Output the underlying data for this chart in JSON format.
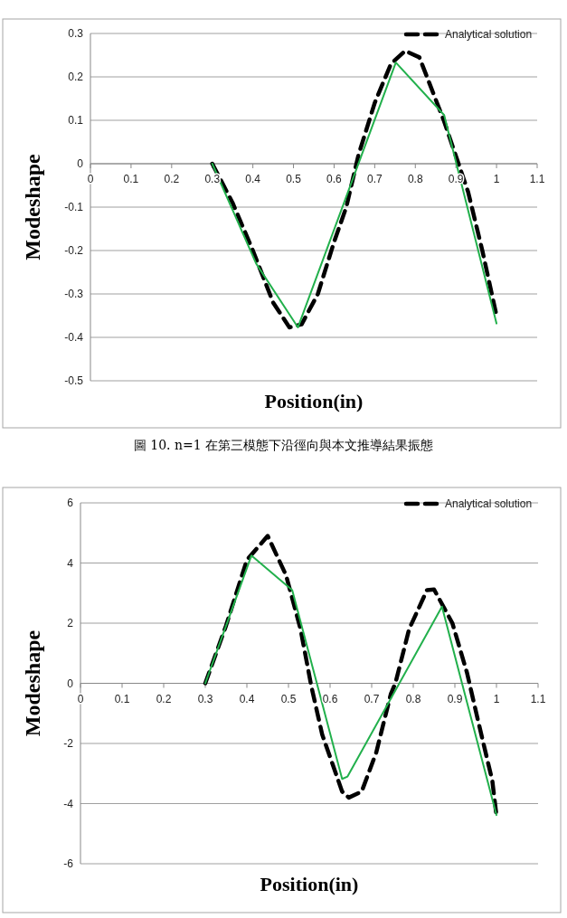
{
  "chart_data": [
    {
      "type": "line",
      "xlabel": "Position(in)",
      "ylabel": "Modeshape",
      "xlim": [
        0,
        1.1
      ],
      "ylim": [
        -0.5,
        0.3
      ],
      "xticks": [
        0,
        0.1,
        0.2,
        0.3,
        0.4,
        0.5,
        0.6,
        0.7,
        0.8,
        0.9,
        1,
        1.1
      ],
      "yticks": [
        -0.5,
        -0.4,
        -0.3,
        -0.2,
        -0.1,
        0,
        0.1,
        0.2,
        0.3
      ],
      "grid": "y",
      "legend": "top right",
      "marker": "none",
      "series": [
        {
          "name": "Analytical solution",
          "color": "#000000",
          "line_style": "dashed",
          "x": [
            0.3,
            0.35,
            0.4,
            0.45,
            0.49,
            0.52,
            0.56,
            0.6,
            0.63,
            0.66,
            0.7,
            0.74,
            0.775,
            0.81,
            0.87,
            0.93,
            0.965,
            1.0
          ],
          "values": [
            0,
            -0.09,
            -0.2,
            -0.32,
            -0.377,
            -0.37,
            -0.3,
            -0.18,
            -0.1,
            0.02,
            0.14,
            0.23,
            0.26,
            0.245,
            0.1,
            -0.065,
            -0.2,
            -0.35
          ]
        },
        {
          "color": "#22b04c",
          "line_style": "solid",
          "x": [
            0.3,
            0.408,
            0.511,
            0.752,
            0.871,
            1.0
          ],
          "values": [
            0,
            -0.23,
            -0.377,
            0.233,
            0.112,
            -0.368
          ]
        }
      ],
      "annotations": [
        "圖 10.  n=1 在第三模態下沿徑向與本文推導結果振態"
      ]
    },
    {
      "type": "line",
      "xlabel": "Position(in)",
      "ylabel": "Modeshape",
      "xlim": [
        0,
        1.1
      ],
      "ylim": [
        -6,
        6
      ],
      "xticks": [
        0,
        0.1,
        0.2,
        0.3,
        0.4,
        0.5,
        0.6,
        0.7,
        0.8,
        0.9,
        1,
        1.1
      ],
      "yticks": [
        -6,
        -4,
        -2,
        0,
        2,
        4,
        6
      ],
      "grid": "y",
      "legend": "top right",
      "marker": "none",
      "series": [
        {
          "name": "Analytical solution",
          "color": "#000000",
          "line_style": "dashed",
          "x": [
            0.3,
            0.35,
            0.4,
            0.45,
            0.494,
            0.529,
            0.555,
            0.581,
            0.629,
            0.645,
            0.676,
            0.711,
            0.746,
            0.757,
            0.79,
            0.833,
            0.85,
            0.894,
            0.929,
            0.955,
            0.99,
            1.0
          ],
          "values": [
            0,
            1.92,
            4.1,
            4.9,
            3.6,
            1.8,
            -0.1,
            -1.7,
            -3.6,
            -3.8,
            -3.6,
            -2.3,
            -0.36,
            0,
            1.8,
            3.1,
            3.12,
            2.0,
            0.36,
            -1.2,
            -3.24,
            -4.4
          ]
        },
        {
          "color": "#22b04c",
          "line_style": "solid",
          "x": [
            0.3,
            0.411,
            0.509,
            0.629,
            0.642,
            0.869,
            1.0
          ],
          "values": [
            0,
            4.25,
            3.1,
            -3.18,
            -3.1,
            2.55,
            -4.38
          ]
        }
      ]
    }
  ]
}
